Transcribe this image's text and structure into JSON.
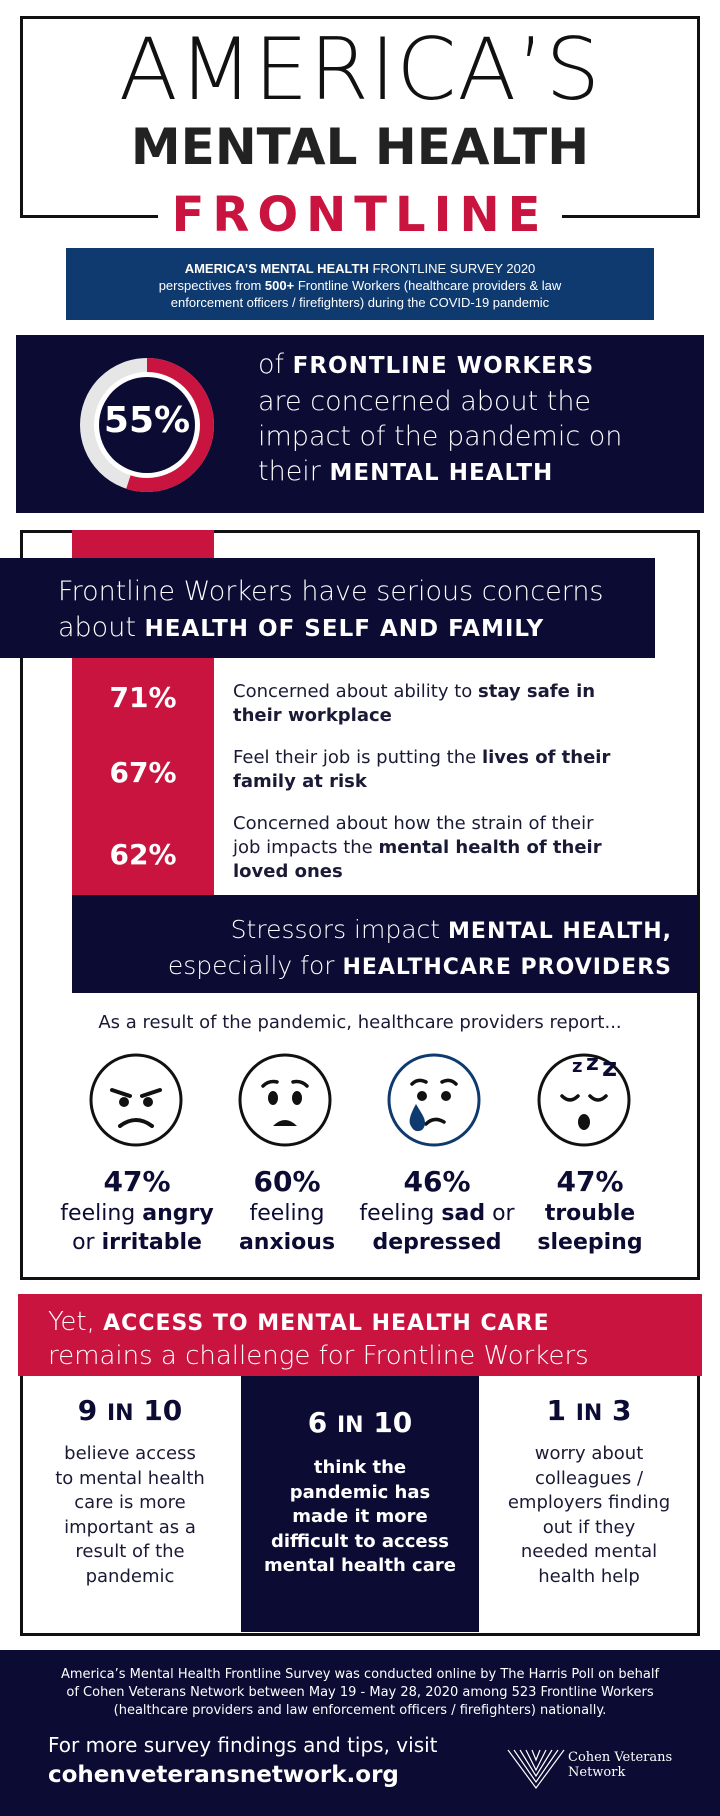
{
  "title": {
    "line1": "AMERICA’S",
    "line2": "MENTAL HEALTH",
    "line3": "FRONTLINE"
  },
  "survey": {
    "name_bold": "AMERICA’S MENTAL HEALTH",
    "name_rest": "FRONTLINE SURVEY 2020",
    "line2_pre": "perspectives from ",
    "line2_bold": "500+",
    "line2_post": " Frontline Workers (healthcare providers & law",
    "line3": "enforcement officers / firefighters) during the COVID-19 pandemic"
  },
  "headline_stat": {
    "value": "55%",
    "fraction": 0.55,
    "l1_pre": "of ",
    "l1_bold": "FRONTLINE WORKERS",
    "l2": "are concerned about the",
    "l3": "impact of the pandemic on",
    "l4_pre": "their ",
    "l4_bold": "MENTAL HEALTH"
  },
  "concerns": {
    "banner_l1": "Frontline Workers have serious concerns",
    "banner_l2_pre": "about ",
    "banner_l2_bold": "HEALTH OF SELF AND FAMILY",
    "items": [
      {
        "pct": "71%",
        "l1_pre": "Concerned about ability to ",
        "l1_bold": "stay safe in",
        "l2_bold": "their workplace",
        "l2_post": "",
        "l3_bold": ""
      },
      {
        "pct": "67%",
        "l1_pre": "Feel their job is putting the ",
        "l1_bold": "lives of their",
        "l2_bold": "family at risk",
        "l2_post": "",
        "l3_bold": ""
      },
      {
        "pct": "62%",
        "l1_pre": "Concerned about how the strain of their",
        "l1_bold": "",
        "l2_post": "job impacts the ",
        "l2_bold": "mental health of their",
        "l3_bold": "loved ones"
      }
    ]
  },
  "stressors": {
    "l1_pre": "Stressors impact ",
    "l1_bold": "MENTAL HEALTH,",
    "l2_pre": "especially for ",
    "l2_bold": "HEALTHCARE PROVIDERS",
    "intro": "As a result of the pandemic, healthcare providers report...",
    "items": [
      {
        "pct": "47%",
        "l1_pre": "feeling ",
        "l1_bold": "angry",
        "l2_pre": "or ",
        "l2_bold": "irritable",
        "icon": "angry-face-icon"
      },
      {
        "pct": "60%",
        "l1_pre": "feeling",
        "l1_bold": "",
        "l2_pre": "",
        "l2_bold": "anxious",
        "icon": "anxious-face-icon"
      },
      {
        "pct": "46%",
        "l1_pre": "feeling ",
        "l1_bold": "sad",
        "l1_post": " or",
        "l2_pre": "",
        "l2_bold": "depressed",
        "icon": "sad-face-icon"
      },
      {
        "pct": "47%",
        "l1_pre": "",
        "l1_bold": "trouble",
        "l2_pre": "",
        "l2_bold": "sleeping",
        "icon": "sleeping-face-icon"
      }
    ]
  },
  "access": {
    "l1_pre": "Yet, ",
    "l1_bold": "ACCESS TO MENTAL HEALTH CARE",
    "l2": "remains a challenge for Frontline Workers",
    "items": [
      {
        "num": "9",
        "in": "IN",
        "den": "10",
        "lines": [
          "believe access",
          "to mental health",
          "care is more",
          "important as a",
          "result of the",
          "pandemic"
        ]
      },
      {
        "num": "6",
        "in": "IN",
        "den": "10",
        "lines": [
          "think the",
          "pandemic has",
          "made it more",
          "difficult to access",
          "mental health care"
        ]
      },
      {
        "num": "1",
        "in": "IN",
        "den": "3",
        "lines": [
          "worry about",
          "colleagues /",
          "employers finding",
          "out if they",
          "needed mental",
          "health help"
        ]
      }
    ]
  },
  "footer": {
    "note_l1": "America’s Mental Health Frontline Survey was conducted online by The Harris Poll on behalf",
    "note_l2": "of Cohen Veterans Network between May 19 - May 28, 2020 among 523 Frontline Workers",
    "note_l3": "(healthcare providers and law enforcement officers / firefighters) nationally.",
    "cta": "For more survey findings and tips, visit",
    "url": "cohenveteransnetwork.org",
    "logo_l1": "Cohen Veterans",
    "logo_l2": "Network"
  },
  "colors": {
    "navy": "#0b0b33",
    "red": "#c8143f",
    "blue": "#0e3a70"
  }
}
